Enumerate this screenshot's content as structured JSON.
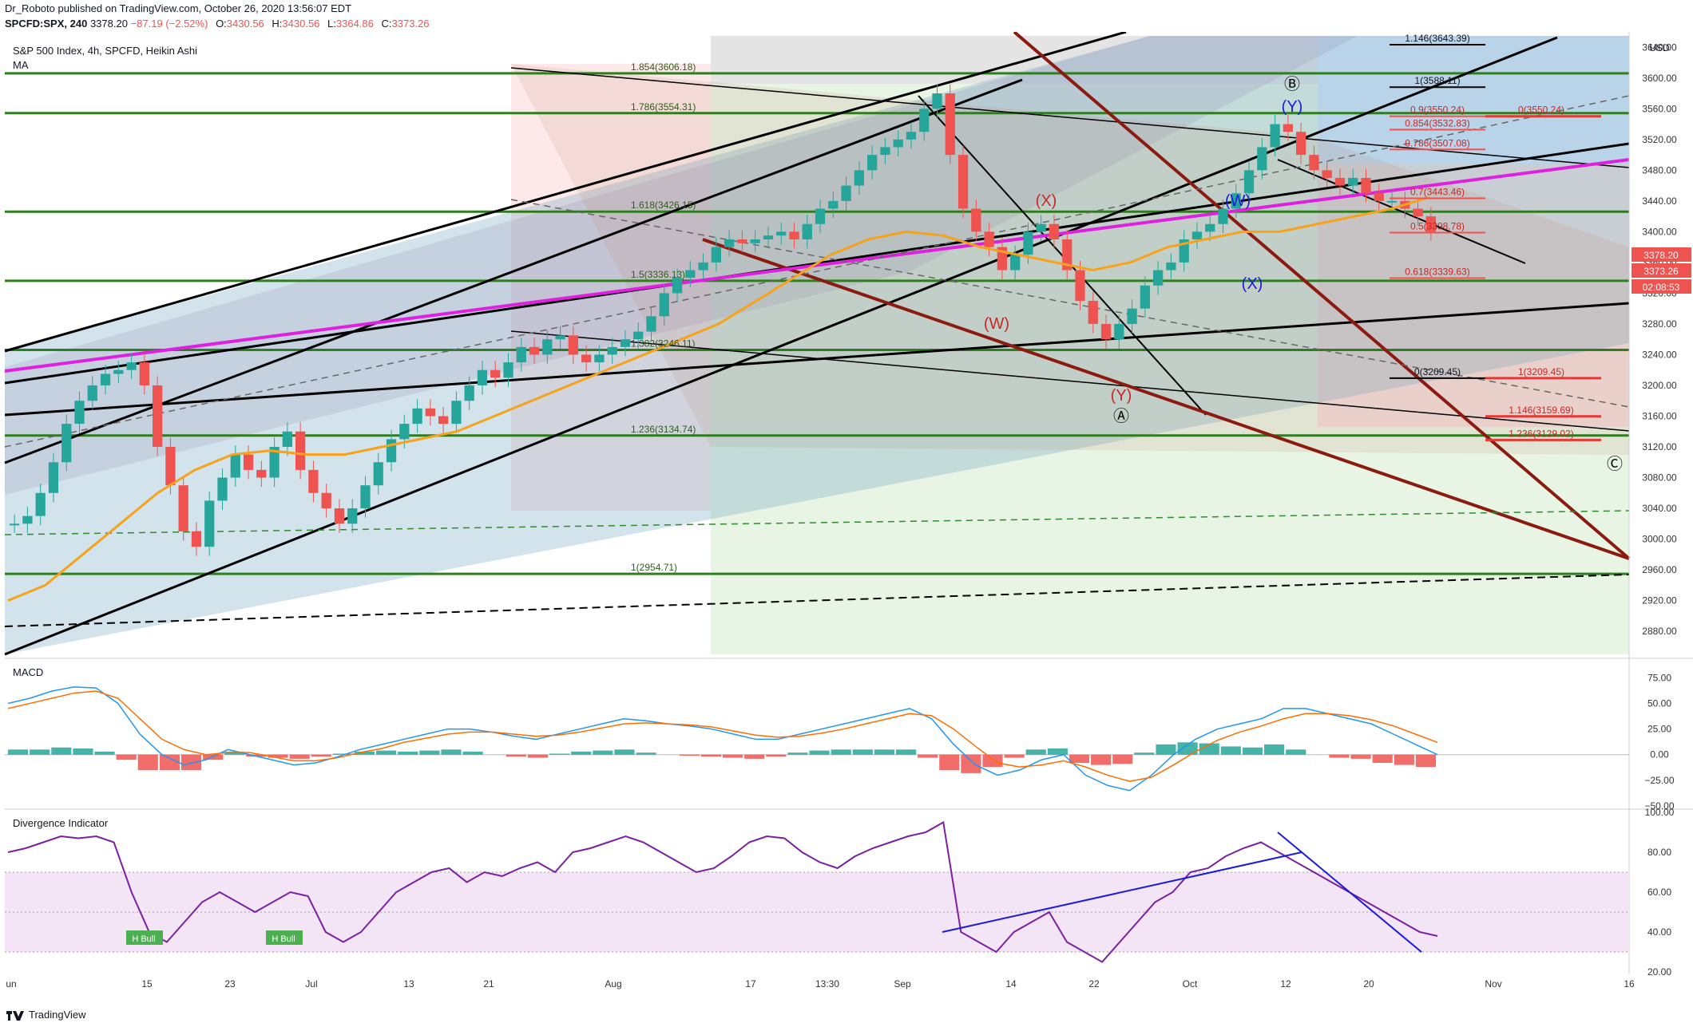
{
  "header": {
    "line1": "Dr_Roboto published on TradingView.com, October 26, 2020 13:56:07 EDT",
    "symbol": "SPCFD:SPX, 240",
    "last": "3378.20",
    "change": "−87.19 (−2.52%)",
    "o_label": "O:",
    "o_val": "3430.56",
    "h_label": "H:",
    "h_val": "3430.56",
    "l_label": "L:",
    "l_val": "3364.86",
    "c_label": "C:",
    "c_val": "3373.26"
  },
  "footer": {
    "brand": "TradingView"
  },
  "colors": {
    "up": "#26a69a",
    "down": "#ef5350",
    "ma": "#f7a21b",
    "magenta": "#e020e0",
    "green_level": "#2e7d1f",
    "maroon": "#8b1a10",
    "macd": "#2196f3",
    "signal": "#ff6d00",
    "rsi": "#7b1fa2",
    "div_line": "#1a1adf"
  },
  "chart_data": [
    {
      "type": "candlestick",
      "title": "S&P 500 Index, 4h, SPCFD, Heikin Ashi",
      "indicator": "MA",
      "currency": "USD",
      "ylim": [
        2850,
        3660
      ],
      "y_ticks": [
        "3640.00",
        "3600.00",
        "3560.00",
        "3520.00",
        "3480.00",
        "3440.00",
        "3400.00",
        "3360.00",
        "3320.00",
        "3280.00",
        "3240.00",
        "3200.00",
        "3160.00",
        "3120.00",
        "3080.00",
        "3040.00",
        "3000.00",
        "2960.00",
        "2920.00",
        "2880.00"
      ],
      "x_ticks": [
        "un",
        "15",
        "23",
        "Jul",
        "13",
        "21",
        "Aug",
        "17",
        "13:30",
        "Sep",
        "14",
        "22",
        "Oct",
        "12",
        "20",
        "Nov",
        "16"
      ],
      "price_close_series": [
        3020,
        3030,
        3060,
        3100,
        3150,
        3180,
        3200,
        3215,
        3220,
        3230,
        3200,
        3120,
        3070,
        3010,
        2990,
        3050,
        3080,
        3110,
        3090,
        3080,
        3120,
        3140,
        3090,
        3060,
        3040,
        3020,
        3040,
        3070,
        3100,
        3130,
        3150,
        3170,
        3160,
        3150,
        3180,
        3200,
        3220,
        3210,
        3230,
        3250,
        3240,
        3260,
        3265,
        3240,
        3230,
        3240,
        3250,
        3260,
        3270,
        3290,
        3320,
        3340,
        3350,
        3360,
        3380,
        3390,
        3385,
        3390,
        3395,
        3400,
        3390,
        3410,
        3430,
        3440,
        3460,
        3480,
        3500,
        3510,
        3520,
        3530,
        3560,
        3580,
        3500,
        3430,
        3400,
        3380,
        3350,
        3370,
        3400,
        3410,
        3390,
        3350,
        3310,
        3280,
        3260,
        3280,
        3300,
        3330,
        3350,
        3360,
        3390,
        3400,
        3410,
        3430,
        3450,
        3480,
        3510,
        3540,
        3530,
        3500,
        3480,
        3470,
        3460,
        3470,
        3450,
        3440,
        3440,
        3430,
        3420,
        3400
      ],
      "moving_average": [
        2920,
        2940,
        2980,
        3020,
        3060,
        3090,
        3110,
        3115,
        3110,
        3110,
        3120,
        3130,
        3140,
        3160,
        3180,
        3200,
        3220,
        3240,
        3260,
        3280,
        3310,
        3340,
        3370,
        3390,
        3400,
        3395,
        3380,
        3370,
        3360,
        3350,
        3360,
        3380,
        3390,
        3400,
        3400,
        3410,
        3420,
        3430,
        3445
      ],
      "levels": {
        "fib_extension_left": [
          "1.854(3606.18)",
          "1.786(3554.31)",
          "1.618(3426.15)",
          "1.5(3336.13)",
          "1.382(3246.11)",
          "1.236(3134.74)",
          "1(2954.71)"
        ],
        "fib_right_black": [
          "1.146(3643.39)",
          "1(3588.11)",
          "0(3209.45)"
        ],
        "fib_right_teal": [
          "0.9(3550.24)",
          "0.854(3532.83)",
          "0.786(3507.08)",
          "0.7(3443.46)",
          "0.5(3398.78)",
          "0.618(3339.63)"
        ],
        "fib_right_red": [
          "0(3550.24)",
          "1(3209.45)",
          "1.146(3159.69)",
          "1.236(3129.02)"
        ]
      },
      "wave_labels": [
        "Ⓑ",
        "(Y)",
        "(W)",
        "(X)",
        "(W)",
        "(X)",
        "(Y)",
        "Ⓐ",
        "Ⓒ"
      ],
      "price_tags": [
        "3378.20",
        "3373.26",
        "02:08:53"
      ]
    },
    {
      "type": "line",
      "title": "MACD",
      "ylim": [
        -50,
        90
      ],
      "y_ticks": [
        "75.00",
        "50.00",
        "25.00",
        "0.00",
        "−25.00",
        "−50.00"
      ],
      "macd": [
        50,
        55,
        62,
        66,
        65,
        50,
        20,
        0,
        -10,
        -5,
        5,
        0,
        -5,
        -10,
        -8,
        -2,
        5,
        10,
        15,
        20,
        25,
        25,
        22,
        18,
        15,
        20,
        25,
        30,
        35,
        33,
        30,
        28,
        25,
        20,
        15,
        15,
        20,
        25,
        30,
        35,
        40,
        45,
        35,
        10,
        -10,
        -20,
        -15,
        -5,
        0,
        -20,
        -30,
        -35,
        -20,
        0,
        15,
        25,
        30,
        35,
        45,
        45,
        40,
        35,
        30,
        20,
        10,
        0
      ],
      "signal": [
        45,
        50,
        55,
        60,
        62,
        55,
        35,
        15,
        5,
        0,
        2,
        2,
        -2,
        -6,
        -6,
        -3,
        2,
        6,
        12,
        16,
        20,
        22,
        22,
        20,
        18,
        19,
        22,
        26,
        30,
        31,
        30,
        29,
        27,
        23,
        19,
        17,
        18,
        21,
        25,
        30,
        35,
        40,
        38,
        25,
        8,
        -8,
        -12,
        -10,
        -6,
        -12,
        -20,
        -26,
        -22,
        -10,
        3,
        14,
        22,
        28,
        35,
        40,
        40,
        38,
        34,
        28,
        20,
        12
      ],
      "histogram": [
        5,
        5,
        7,
        6,
        3,
        -5,
        -15,
        -15,
        -15,
        -5,
        3,
        -2,
        -3,
        -4,
        -2,
        1,
        3,
        4,
        3,
        4,
        5,
        3,
        0,
        -2,
        -3,
        1,
        3,
        4,
        5,
        2,
        0,
        -1,
        -2,
        -3,
        -4,
        -2,
        2,
        4,
        5,
        5,
        5,
        5,
        -3,
        -15,
        -18,
        -12,
        -3,
        5,
        6,
        -8,
        -10,
        -9,
        2,
        10,
        12,
        11,
        8,
        7,
        10,
        5,
        0,
        -3,
        -4,
        -8,
        -10,
        -12
      ]
    },
    {
      "type": "line",
      "title": "Divergence Indicator",
      "ylim": [
        20,
        100
      ],
      "y_ticks": [
        "100.00",
        "80.00",
        "60.00",
        "40.00",
        "20.00"
      ],
      "rsi": [
        80,
        82,
        85,
        88,
        87,
        88,
        85,
        60,
        40,
        35,
        45,
        55,
        60,
        55,
        50,
        55,
        60,
        58,
        40,
        35,
        40,
        50,
        60,
        65,
        70,
        72,
        65,
        70,
        68,
        72,
        75,
        70,
        80,
        82,
        85,
        88,
        85,
        80,
        75,
        70,
        72,
        78,
        85,
        88,
        87,
        80,
        75,
        72,
        78,
        82,
        85,
        88,
        90,
        95,
        40,
        35,
        30,
        40,
        45,
        50,
        35,
        30,
        25,
        35,
        45,
        55,
        60,
        70,
        72,
        78,
        82,
        85,
        80,
        75,
        70,
        65,
        60,
        55,
        50,
        45,
        40,
        38
      ],
      "annotations": [
        "H Bull",
        "H Bull"
      ]
    }
  ]
}
